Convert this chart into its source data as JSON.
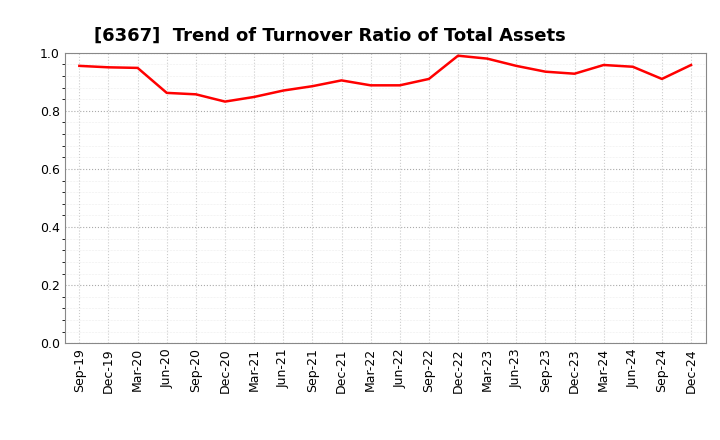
{
  "title": "[6367]  Trend of Turnover Ratio of Total Assets",
  "x_labels": [
    "Sep-19",
    "Dec-19",
    "Mar-20",
    "Jun-20",
    "Sep-20",
    "Dec-20",
    "Mar-21",
    "Jun-21",
    "Sep-21",
    "Dec-21",
    "Mar-22",
    "Jun-22",
    "Sep-22",
    "Dec-22",
    "Mar-23",
    "Jun-23",
    "Sep-23",
    "Dec-23",
    "Mar-24",
    "Jun-24",
    "Sep-24",
    "Dec-24"
  ],
  "y_values": [
    0.955,
    0.95,
    0.948,
    0.862,
    0.857,
    0.832,
    0.848,
    0.87,
    0.885,
    0.905,
    0.888,
    0.888,
    0.91,
    0.99,
    0.98,
    0.955,
    0.935,
    0.928,
    0.958,
    0.952,
    0.91,
    0.958
  ],
  "line_color": "#FF0000",
  "line_width": 1.8,
  "ylim": [
    0.0,
    1.0
  ],
  "yticks": [
    0.0,
    0.2,
    0.4,
    0.6,
    0.8,
    1.0
  ],
  "background_color": "#FFFFFF",
  "grid_color_major": "#AAAAAA",
  "grid_color_minor": "#CCCCCC",
  "title_fontsize": 13,
  "tick_fontsize": 9
}
